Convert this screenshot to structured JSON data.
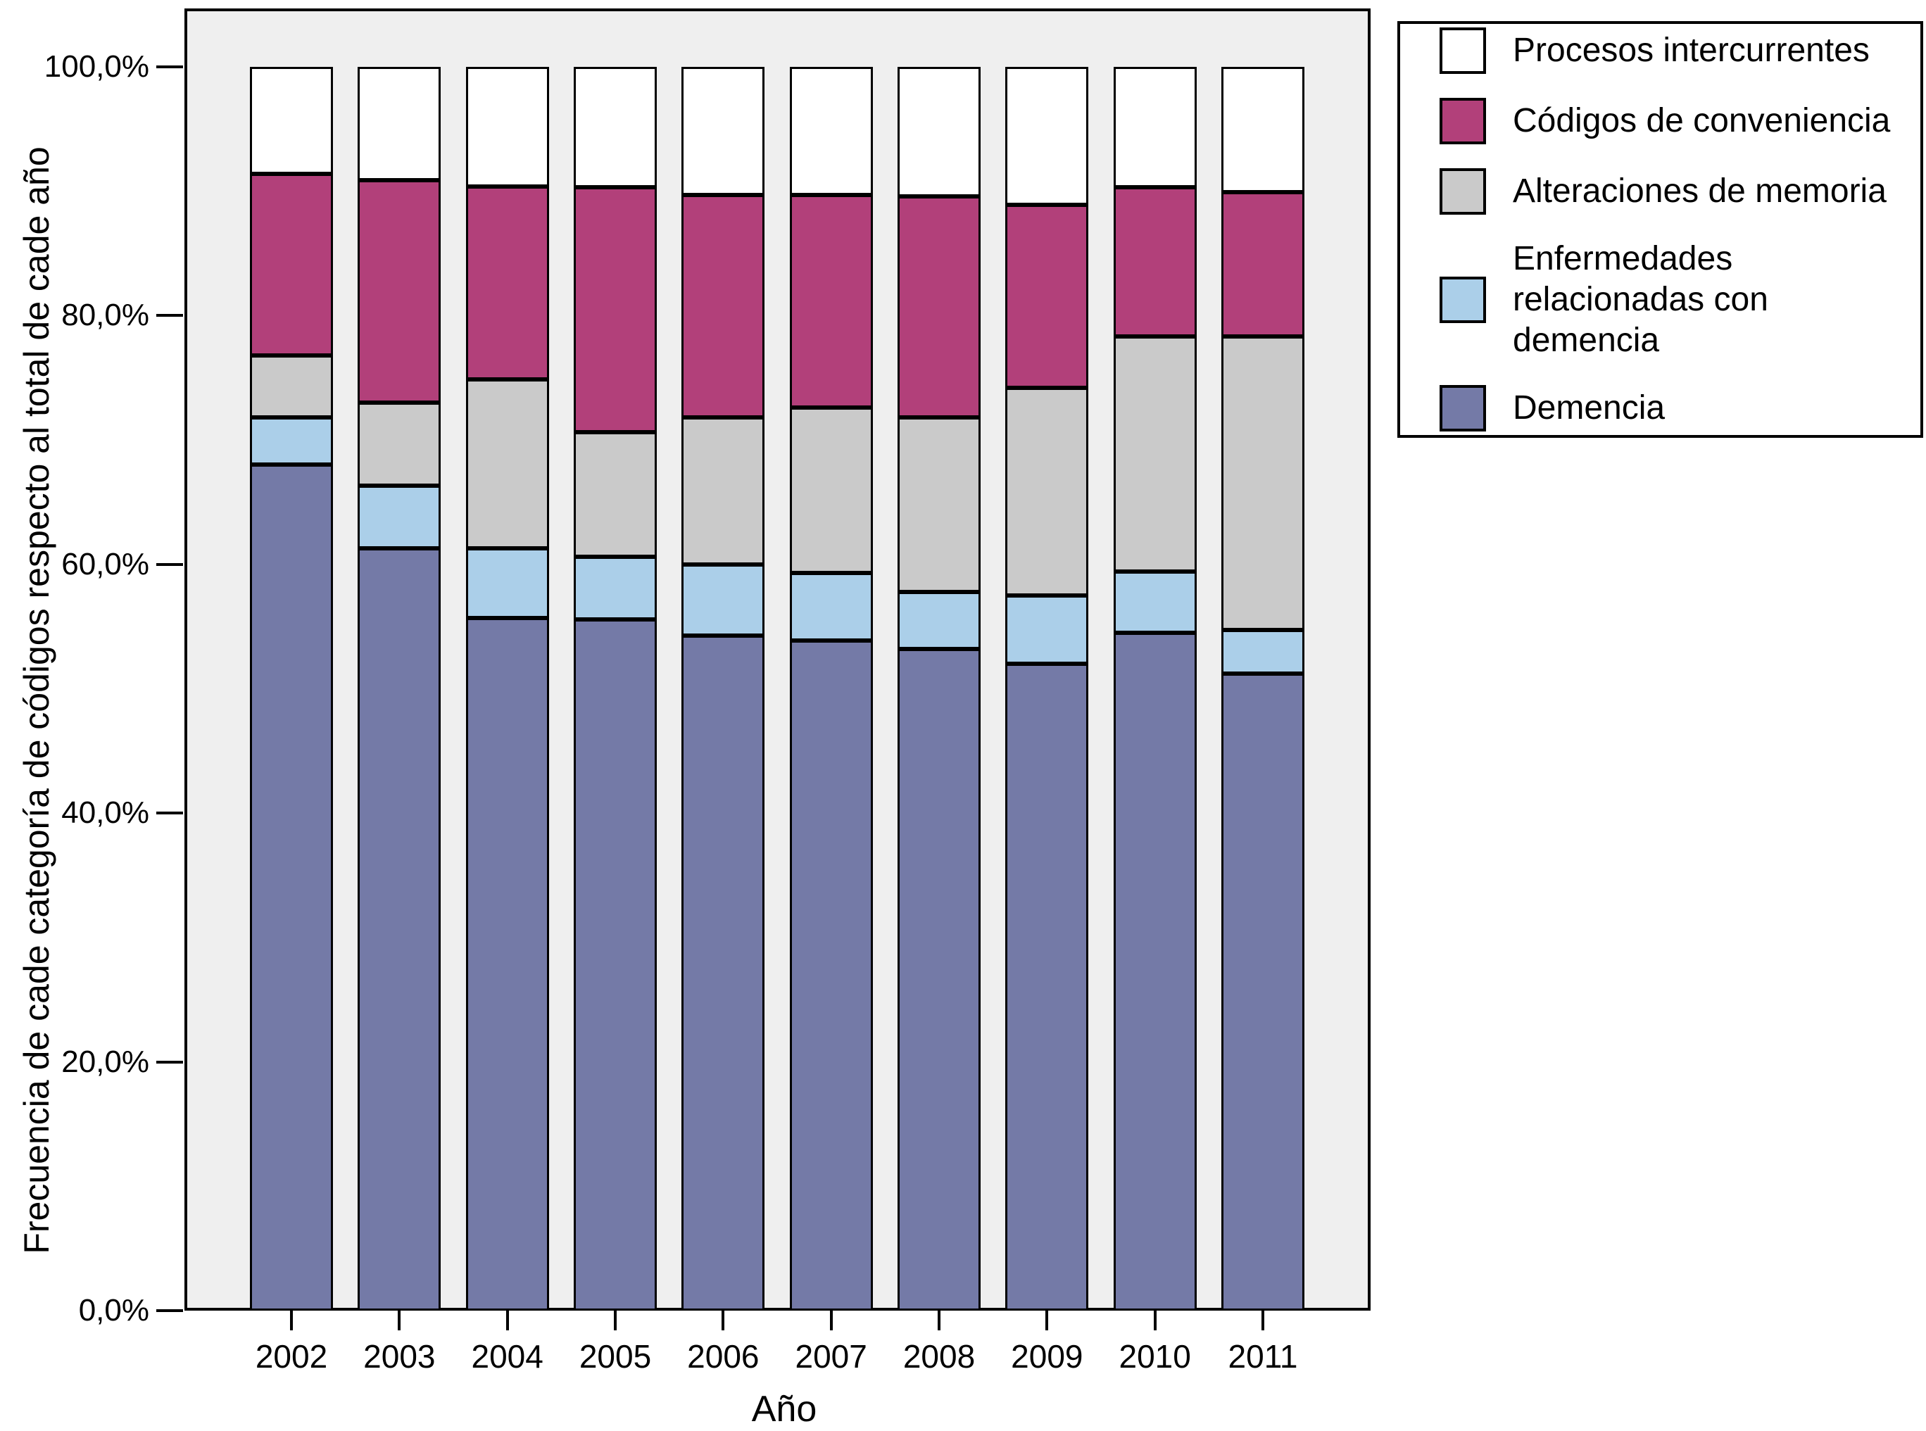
{
  "chart_data": {
    "type": "bar",
    "stacked": true,
    "orientation": "vertical",
    "title": "",
    "xlabel": "Año",
    "ylabel": "Frecuencia de cade categoría de códigos respecto al  total de cade año",
    "categories": [
      "2002",
      "2003",
      "2004",
      "2005",
      "2006",
      "2007",
      "2008",
      "2009",
      "2010",
      "2011"
    ],
    "y_tick_labels": [
      "0,0%",
      "20,0%",
      "40,0%",
      "60,0%",
      "80,0%",
      "100,0%"
    ],
    "y_tick_values": [
      0,
      20,
      40,
      60,
      80,
      100
    ],
    "ylim": [
      0,
      100
    ],
    "units": "percent",
    "grid": false,
    "legend_position": "top-right-outside",
    "series": [
      {
        "name": "Demencia",
        "color": "#747aa7",
        "values": [
          68.0,
          61.3,
          55.7,
          55.6,
          54.3,
          53.9,
          53.2,
          52.0,
          54.5,
          51.2
        ]
      },
      {
        "name": "Enfermedades relacionadas con demencia",
        "color": "#abcfe9",
        "values": [
          3.8,
          5.0,
          5.6,
          5.0,
          5.7,
          5.4,
          4.6,
          5.5,
          4.9,
          3.5
        ]
      },
      {
        "name": "Alteraciones de memoria",
        "color": "#cacaca",
        "values": [
          5.0,
          6.7,
          13.6,
          10.0,
          11.8,
          13.3,
          14.0,
          16.7,
          18.9,
          23.6
        ]
      },
      {
        "name": "Códigos de conveniencia",
        "color": "#b2407a",
        "values": [
          14.6,
          17.9,
          15.5,
          19.7,
          17.9,
          17.1,
          17.8,
          14.7,
          12.0,
          11.6
        ]
      },
      {
        "name": "Procesos intercurrentes",
        "color": "#ffffff",
        "values": [
          8.6,
          9.1,
          9.6,
          9.7,
          10.3,
          10.3,
          10.4,
          11.1,
          9.7,
          10.1
        ]
      }
    ],
    "colors": {
      "plot_background": "#efefef",
      "page_background": "#ffffff",
      "axis": "#000000",
      "bar_outline": "#000000"
    }
  }
}
